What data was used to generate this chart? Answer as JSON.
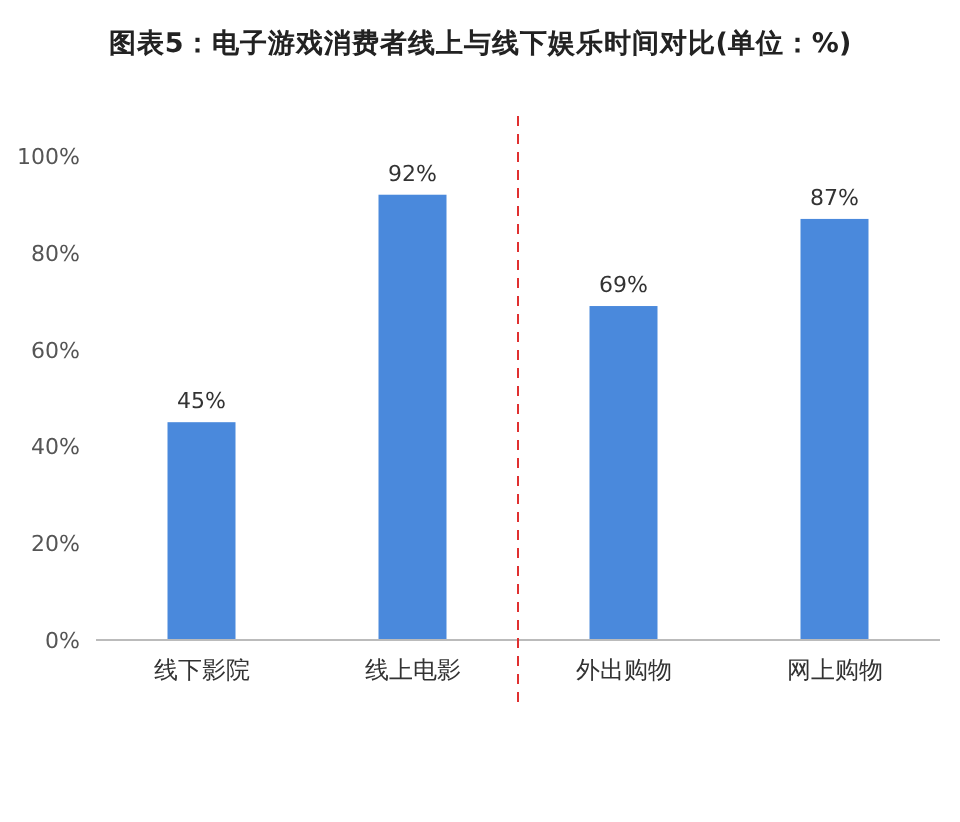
{
  "chart_data": {
    "type": "bar",
    "title": "图表5：电子游戏消费者线上与线下娱乐时间对比(单位：%)",
    "categories": [
      "线下影院",
      "线上电影",
      "外出购物",
      "网上购物"
    ],
    "values": [
      45,
      92,
      69,
      87
    ],
    "value_labels": [
      "45%",
      "92%",
      "69%",
      "87%"
    ],
    "color": "#4a89dc",
    "ylim": [
      0,
      100
    ],
    "yticks": [
      {
        "value": 0,
        "label": "0%"
      },
      {
        "value": 20,
        "label": "20%"
      },
      {
        "value": 40,
        "label": "40%"
      },
      {
        "value": 60,
        "label": "60%"
      },
      {
        "value": 80,
        "label": "80%"
      },
      {
        "value": 100,
        "label": "100%"
      }
    ],
    "grid": false
  }
}
